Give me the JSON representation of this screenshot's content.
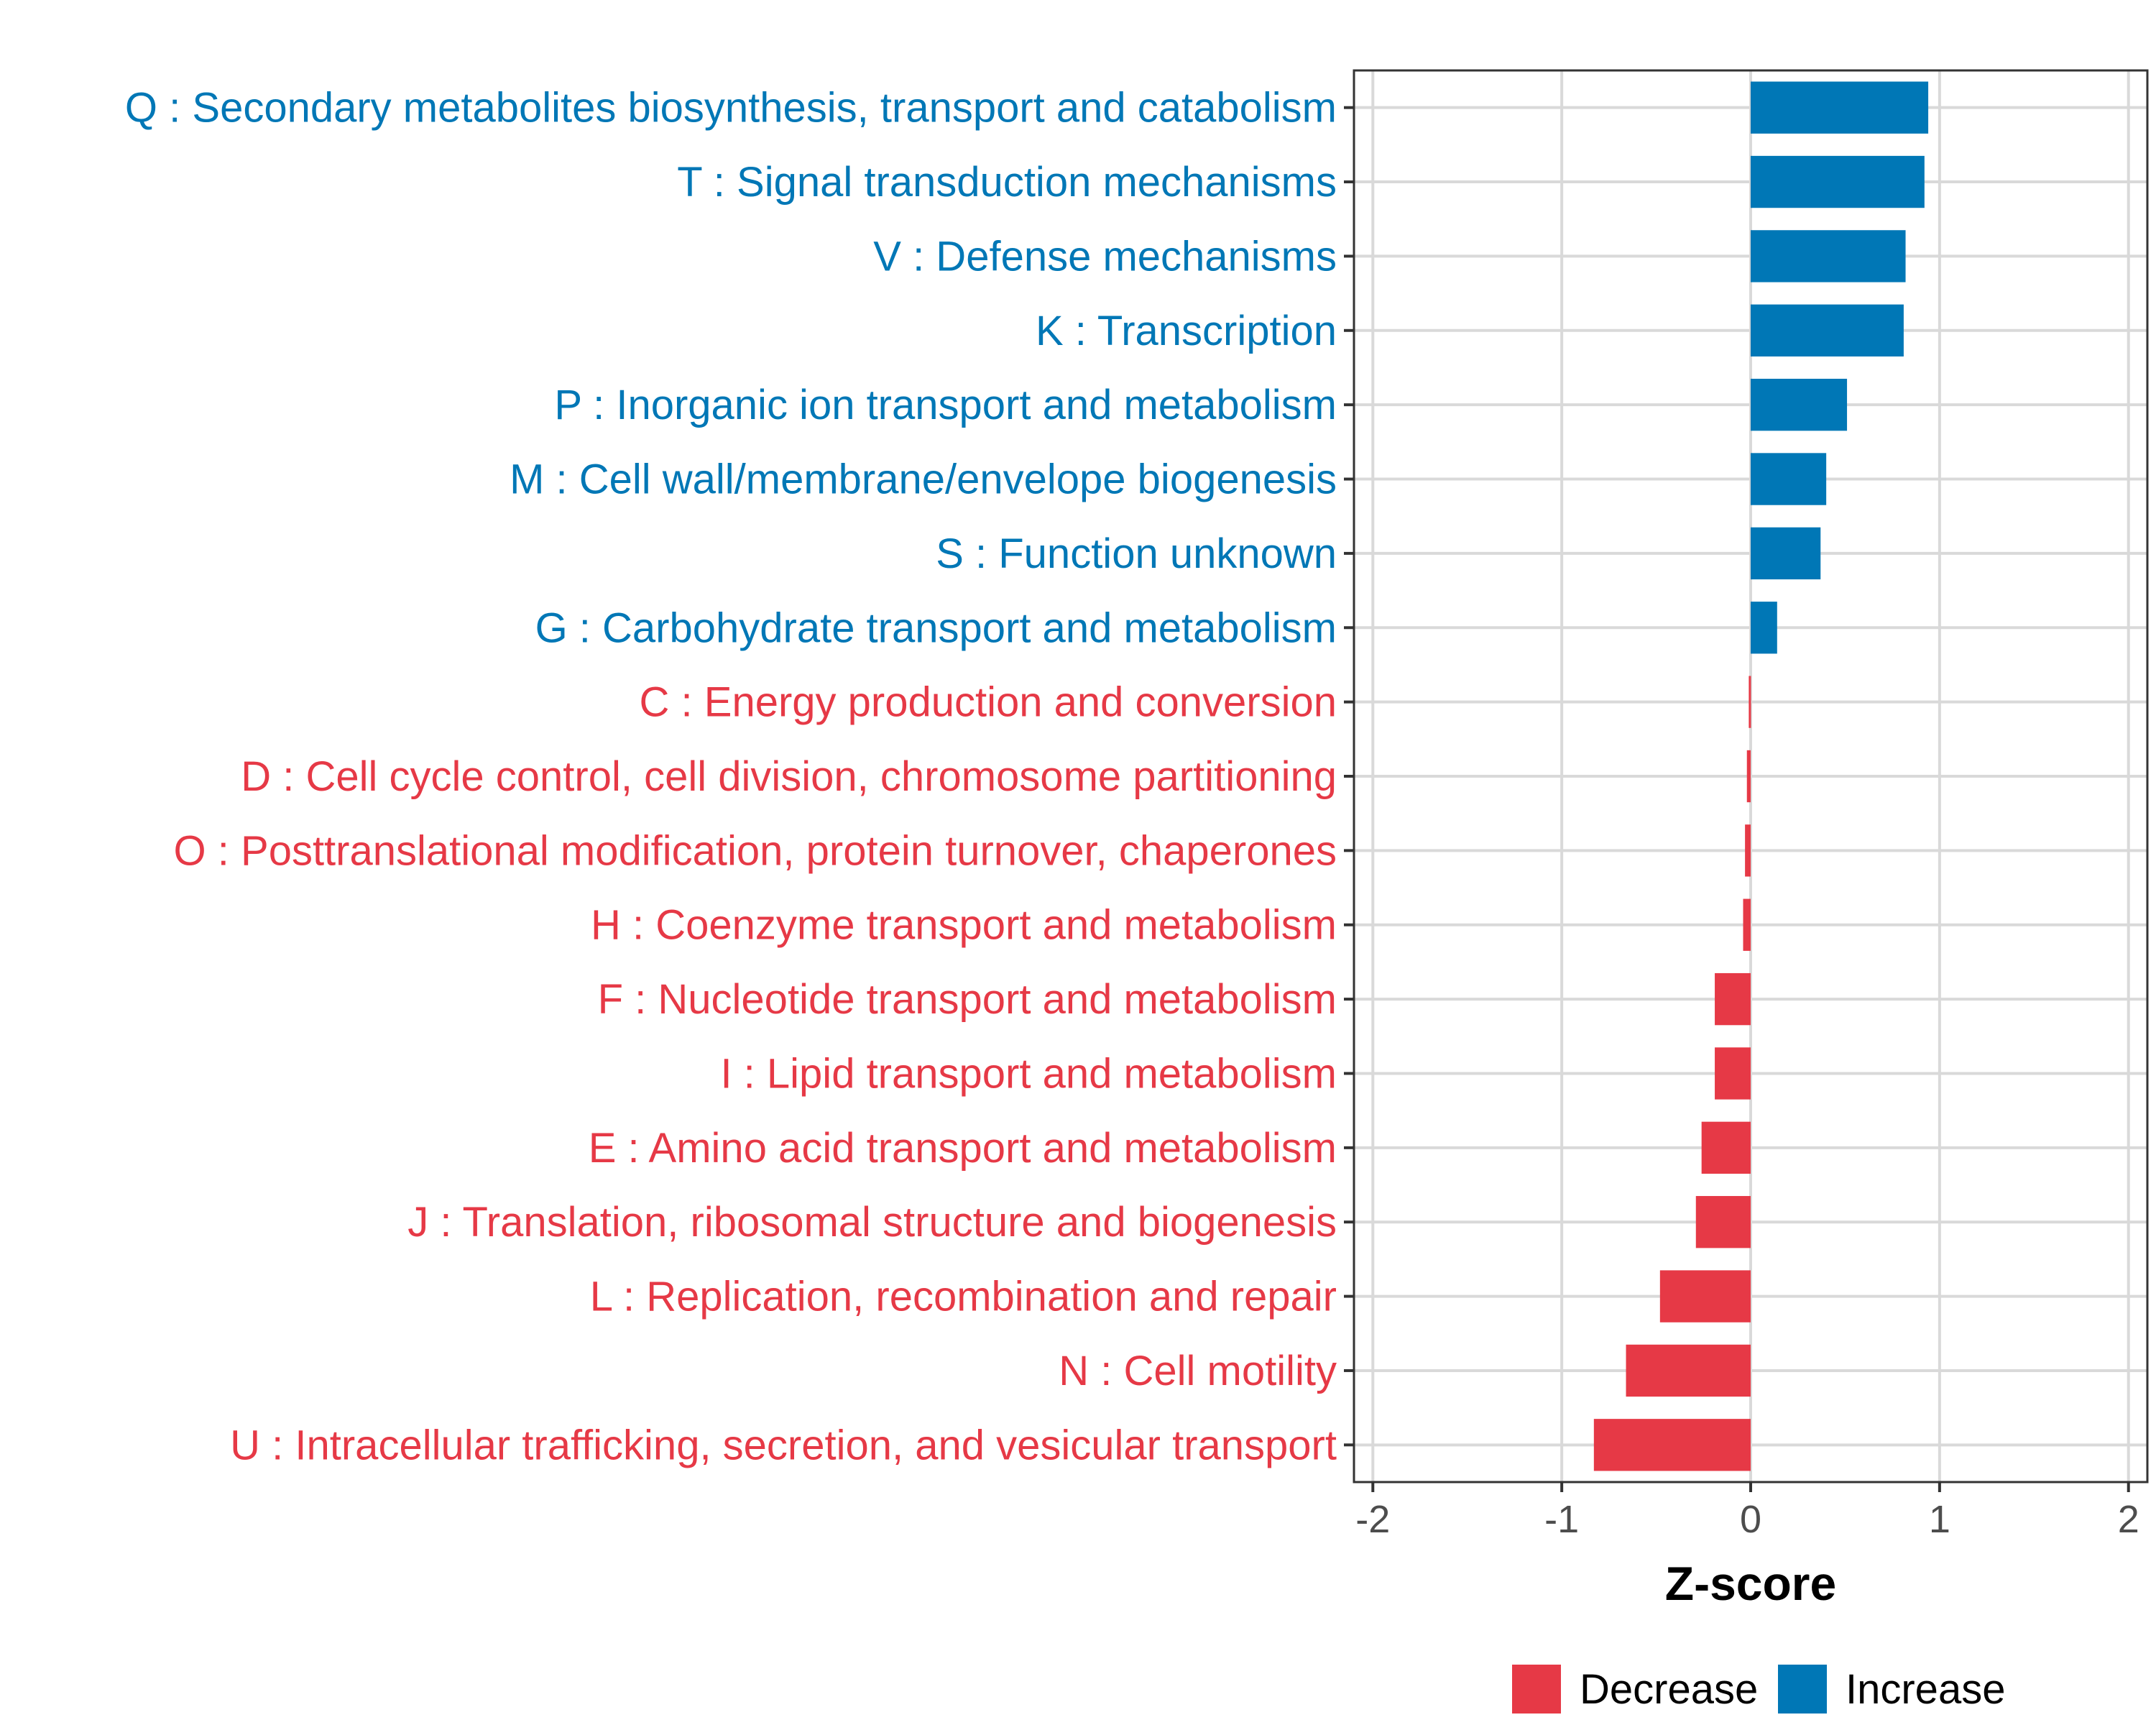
{
  "chart_data": {
    "type": "bar",
    "orientation": "horizontal",
    "title": "",
    "xlabel": "Z-score",
    "ylabel": "",
    "xlim": [
      -2.1,
      2.1
    ],
    "xticks": [
      -2,
      -1,
      0,
      1,
      2
    ],
    "grid": true,
    "legend_position": "bottom",
    "colors": {
      "Decrease": "#E63946",
      "Increase": "#0077B6"
    },
    "legend": [
      {
        "name": "Decrease",
        "color": "#E63946"
      },
      {
        "name": "Increase",
        "color": "#0077B6"
      }
    ],
    "categories": [
      "Q : Secondary metabolites biosynthesis, transport and catabolism",
      "T : Signal transduction mechanisms",
      "V : Defense mechanisms",
      "K : Transcription",
      "P : Inorganic ion transport and metabolism",
      "M : Cell wall/membrane/envelope biogenesis",
      "S : Function unknown",
      "G : Carbohydrate transport and metabolism",
      "C : Energy production and conversion",
      "D : Cell cycle control, cell division, chromosome partitioning",
      "O : Posttranslational modification, protein turnover, chaperones",
      "H : Coenzyme transport and metabolism",
      "F : Nucleotide transport and metabolism",
      "I : Lipid transport and metabolism",
      "E : Amino acid transport and metabolism",
      "J : Translation, ribosomal structure and biogenesis",
      "L : Replication, recombination and repair",
      "N : Cell motility",
      "U : Intracellular trafficking, secretion, and vesicular transport"
    ],
    "values": [
      0.94,
      0.92,
      0.82,
      0.81,
      0.51,
      0.4,
      0.37,
      0.14,
      -0.01,
      -0.02,
      -0.03,
      -0.04,
      -0.19,
      -0.19,
      -0.26,
      -0.29,
      -0.48,
      -0.66,
      -0.83
    ],
    "groups": [
      "Increase",
      "Increase",
      "Increase",
      "Increase",
      "Increase",
      "Increase",
      "Increase",
      "Increase",
      "Decrease",
      "Decrease",
      "Decrease",
      "Decrease",
      "Decrease",
      "Decrease",
      "Decrease",
      "Decrease",
      "Decrease",
      "Decrease",
      "Decrease"
    ]
  }
}
